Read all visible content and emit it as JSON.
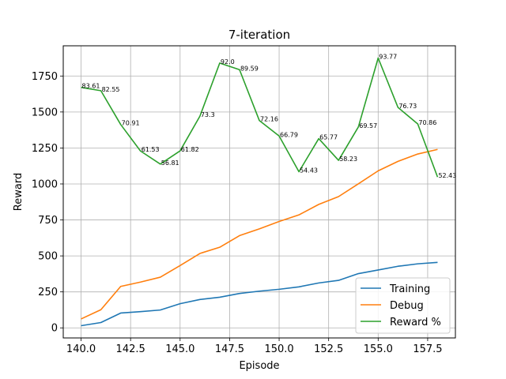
{
  "chart_data": {
    "type": "line",
    "title": "7-iteration",
    "xlabel": "Episode",
    "ylabel": "Reward",
    "xlim": [
      139.1,
      158.9
    ],
    "ylim": [
      -70,
      1960
    ],
    "grid": true,
    "legend_position": "bottom-right",
    "x_ticks": [
      140.0,
      142.5,
      145.0,
      147.5,
      150.0,
      152.5,
      155.0,
      157.5
    ],
    "x_tick_labels": [
      "140.0",
      "142.5",
      "145.0",
      "147.5",
      "150.0",
      "152.5",
      "155.0",
      "157.5"
    ],
    "y_ticks": [
      0,
      250,
      500,
      750,
      1000,
      1250,
      1500,
      1750
    ],
    "y_tick_labels": [
      "0",
      "250",
      "500",
      "750",
      "1000",
      "1250",
      "1500",
      "1750"
    ],
    "x": [
      140,
      141,
      142,
      143,
      144,
      145,
      146,
      147,
      148,
      149,
      150,
      151,
      152,
      153,
      154,
      155,
      156,
      157,
      158
    ],
    "series": [
      {
        "name": "Training",
        "color": "#1f77b4",
        "values": [
          15,
          37,
          103,
          113,
          124,
          168,
          197,
          213,
          239,
          255,
          268,
          285,
          312,
          330,
          377,
          402,
          428,
          445,
          455
        ]
      },
      {
        "name": "Debug",
        "color": "#ff7f0e",
        "values": [
          62,
          126,
          288,
          318,
          352,
          433,
          517,
          560,
          641,
          688,
          739,
          785,
          858,
          912,
          1001,
          1091,
          1157,
          1208,
          1240
        ]
      },
      {
        "name": "Reward %",
        "color": "#2ca02c",
        "values": [
          1671,
          1648,
          1413,
          1229,
          1138,
          1230,
          1471,
          1840,
          1794,
          1441,
          1333,
          1085,
          1315,
          1164,
          1396,
          1875,
          1532,
          1417,
          1048
        ],
        "point_labels": [
          "83.61",
          "82.55",
          "70.91",
          "61.53",
          "56.81",
          "61.82",
          "73.3",
          "92.0",
          "89.59",
          "72.16",
          "66.79",
          "54.43",
          "65.77",
          "58.23",
          "69.57",
          "93.77",
          "76.73",
          "70.86",
          "52.43"
        ]
      }
    ]
  }
}
